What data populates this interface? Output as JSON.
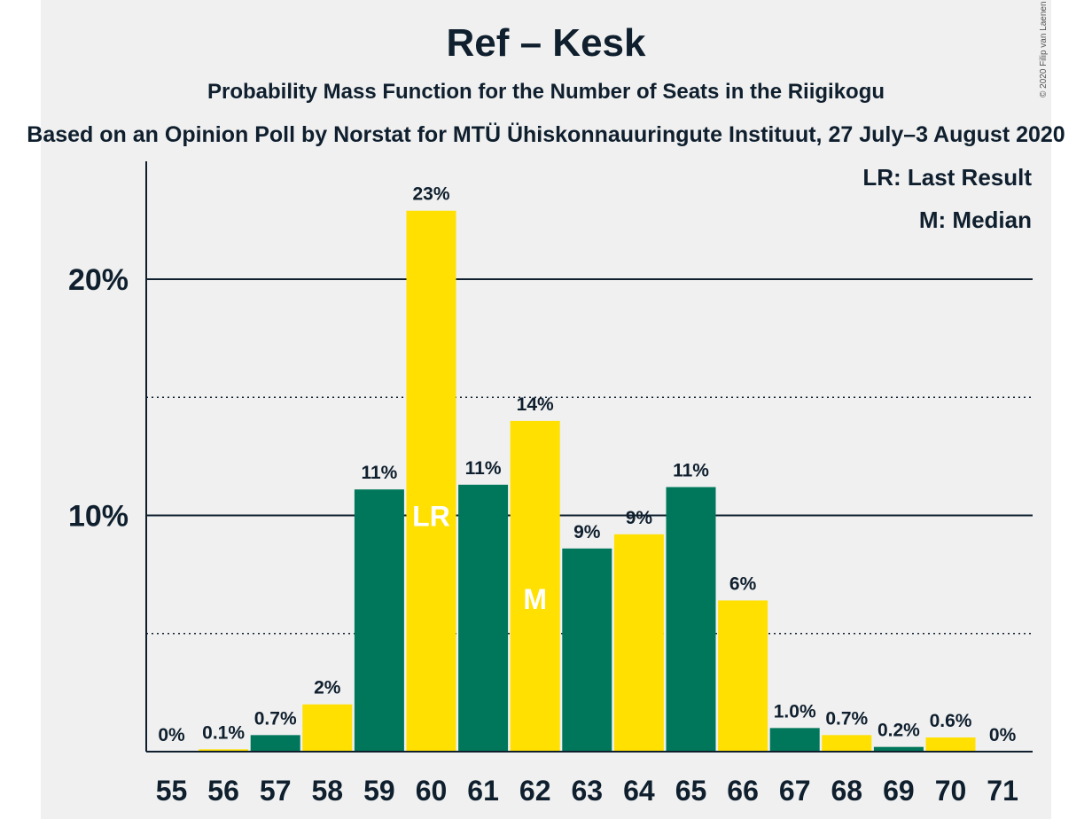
{
  "title": "Ref – Kesk",
  "subtitle": "Probability Mass Function for the Number of Seats in the Riigikogu",
  "subtitle2": "Based on an Opinion Poll by Norstat for MTÜ Ühiskonnauuringute Instituut, 27 July–3 August 2020",
  "legend": {
    "lr": "LR: Last Result",
    "m": "M: Median"
  },
  "copyright": "© 2020 Filip van Laenen",
  "colors": {
    "green": "#00775a",
    "yellow": "#ffe000",
    "background": "#f0f0f0",
    "text": "#0f1f2e"
  },
  "chart_data": {
    "type": "bar",
    "categories": [
      "55",
      "56",
      "57",
      "58",
      "59",
      "60",
      "61",
      "62",
      "63",
      "64",
      "65",
      "66",
      "67",
      "68",
      "69",
      "70",
      "71"
    ],
    "values": [
      0,
      0.1,
      0.7,
      2,
      11.1,
      22.9,
      11.3,
      14.0,
      8.6,
      9.2,
      11.2,
      6.4,
      1.0,
      0.7,
      0.2,
      0.6,
      0
    ],
    "labels": [
      "0%",
      "0.1%",
      "0.7%",
      "2%",
      "11%",
      "23%",
      "11%",
      "14%",
      "9%",
      "9%",
      "11%",
      "6%",
      "1.0%",
      "0.7%",
      "0.2%",
      "0.6%",
      "0%"
    ],
    "bar_colors": [
      "green",
      "yellow",
      "green",
      "yellow",
      "green",
      "yellow",
      "green",
      "yellow",
      "green",
      "yellow",
      "green",
      "yellow",
      "green",
      "yellow",
      "green",
      "yellow",
      "green"
    ],
    "markers": {
      "60": "LR",
      "62": "M"
    },
    "yticks": [
      {
        "value": 10,
        "label": "10%"
      },
      {
        "value": 20,
        "label": "20%"
      }
    ],
    "minor_gridlines": [
      5,
      15
    ],
    "ylim": [
      0,
      25
    ],
    "xlabel": "",
    "ylabel": ""
  }
}
